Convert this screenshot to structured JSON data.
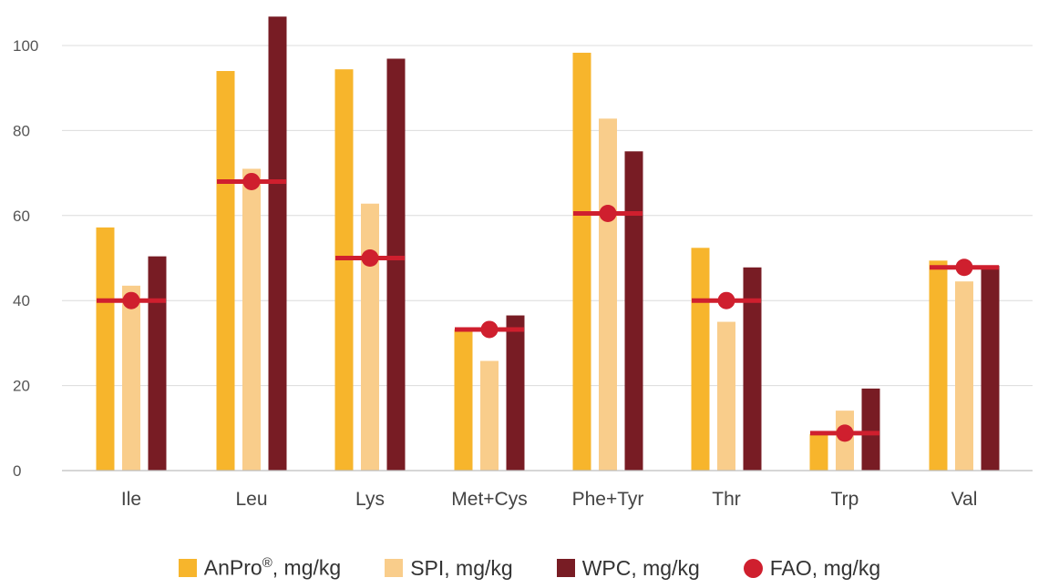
{
  "chart_data": {
    "type": "bar",
    "categories": [
      "Ile",
      "Leu",
      "Lys",
      "Met+Cys",
      "Phe+Tyr",
      "Thr",
      "Trp",
      "Val"
    ],
    "series": [
      {
        "name": "AnPro",
        "name_sup": "®",
        "name_suffix": ", mg/kg",
        "color": "#f7b52c",
        "values": [
          57.2,
          94,
          94.4,
          33.2,
          98.3,
          52.4,
          8.6,
          49.4
        ]
      },
      {
        "name": "SPI",
        "name_suffix": ", mg/kg",
        "color": "#f9cd8b",
        "values": [
          43.5,
          71,
          62.8,
          25.8,
          82.8,
          35,
          14.1,
          44.5
        ]
      },
      {
        "name": "WPC",
        "name_suffix": ", mg/kg",
        "color": "#781c24",
        "values": [
          50.4,
          106.8,
          96.9,
          36.5,
          75.1,
          47.8,
          19.3,
          48.2
        ]
      }
    ],
    "reference_series": {
      "name": "FAO",
      "name_suffix": ", mg/kg",
      "color": "#cf1f2e",
      "marker": "dot-with-line",
      "values": [
        40,
        68,
        50,
        33.2,
        60.5,
        40,
        8.8,
        47.8
      ]
    },
    "yticks": [
      0,
      20,
      40,
      60,
      80,
      100
    ],
    "ylim": [
      0,
      110
    ],
    "grid": true,
    "legend_position": "bottom-center",
    "title": "",
    "xlabel": "",
    "ylabel": ""
  }
}
